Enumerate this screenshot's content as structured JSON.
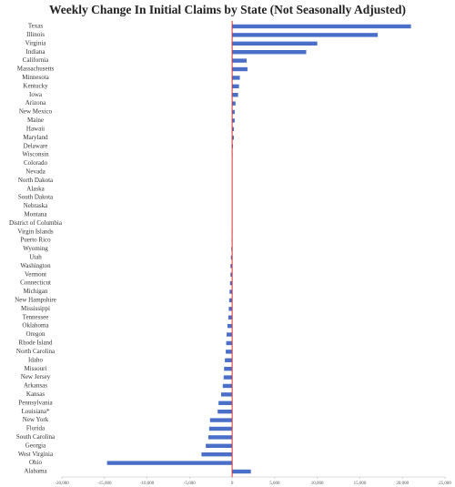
{
  "chart_data": {
    "type": "hbar",
    "title": "Weekly Change In Initial Claims by State (Not Seasonally Adjusted)",
    "categories": [
      "Texas",
      "Illinois",
      "Virginia",
      "Indiana",
      "California",
      "Massachusetts",
      "Minnesota",
      "Kentucky",
      "Iowa",
      "Arizona",
      "New Mexico",
      "Maine",
      "Hawaii",
      "Maryland",
      "Delaware",
      "Wisconsin",
      "Colorado",
      "Nevada",
      "North Dakota",
      "Alaska",
      "South Dakota",
      "Nebraska",
      "Montana",
      "District of Columbia",
      "Virgin Islands",
      "Puerto Rico",
      "Wyoming",
      "Utah",
      "Washington",
      "Vermont",
      "Connecticut",
      "Michigan",
      "New Hampshire",
      "Mississippi",
      "Tennessee",
      "Oklahoma",
      "Oregon",
      "Rhode Island",
      "North Carolina",
      "Idaho",
      "Missouri",
      "New Jersey",
      "Arkansas",
      "Kansas",
      "Pennsylvania",
      "Louisiana*",
      "New York",
      "Florida",
      "South Carolina",
      "Georgia",
      "West Virginia",
      "Ohio",
      "Alabama"
    ],
    "values": [
      21000,
      17100,
      10000,
      8700,
      1700,
      1800,
      900,
      800,
      700,
      400,
      300,
      300,
      200,
      200,
      100,
      50,
      40,
      30,
      20,
      10,
      10,
      0,
      -10,
      -20,
      -30,
      -50,
      -100,
      -150,
      -200,
      -200,
      -250,
      -300,
      -350,
      -400,
      -450,
      -550,
      -650,
      -700,
      -750,
      -850,
      -950,
      -1000,
      -1100,
      -1300,
      -1600,
      -1700,
      -2600,
      -2700,
      -2800,
      -3100,
      -3600,
      -14700,
      2200
    ],
    "color": "#4a6fc9",
    "zero_line_color": "#d9302c",
    "xlim": [
      -20000,
      25000
    ],
    "xticks": [
      {
        "value": -20000,
        "label": "-20,000"
      },
      {
        "value": -15000,
        "label": "-15,000"
      },
      {
        "value": -10000,
        "label": "-10,000"
      },
      {
        "value": -5000,
        "label": "-5,000"
      },
      0,
      {
        "value": 5000,
        "label": "5,000"
      },
      {
        "value": 10000,
        "label": "10,000"
      },
      {
        "value": 15000,
        "label": "15,000"
      },
      {
        "value": 20000,
        "label": "20,000"
      },
      {
        "value": 25000,
        "label": "25,000"
      }
    ]
  }
}
